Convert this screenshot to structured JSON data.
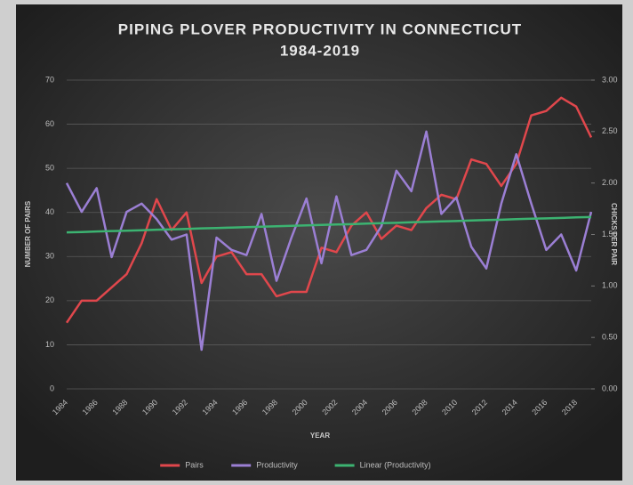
{
  "chart_data": {
    "type": "line",
    "title": "PIPING PLOVER PRODUCTIVITY IN CONNECTICUT",
    "subtitle": "1984-2019",
    "x_label": "YEAR",
    "y_label": "NUMBER OF PAIRS",
    "y2_label": "CHICKS PER PAIR",
    "categories": [
      "1984",
      null,
      "1986",
      null,
      "1988",
      null,
      "1990",
      null,
      "1992",
      null,
      "1994",
      null,
      "1996",
      null,
      "1998",
      null,
      "2000",
      null,
      "2002",
      null,
      "2004",
      null,
      "2006",
      null,
      "2008",
      null,
      "2010",
      null,
      "2012",
      null,
      "2014",
      null,
      "2016",
      null,
      "2018",
      null
    ],
    "ylim": [
      0,
      70
    ],
    "yticks": [
      0,
      10,
      20,
      30,
      40,
      50,
      60,
      70
    ],
    "y2lim": [
      0,
      3
    ],
    "y2ticks": [
      {
        "value": 0,
        "label": "0.00"
      },
      {
        "value": 0.5,
        "label": "0.50"
      },
      {
        "value": 1,
        "label": "1.00"
      },
      {
        "value": 1.5,
        "label": "1.50"
      },
      {
        "value": 2,
        "label": "2.00"
      },
      {
        "value": 2.5,
        "label": "2.50"
      },
      {
        "value": 3,
        "label": "3.00"
      }
    ],
    "grid": true,
    "legend": "bottom",
    "series": [
      {
        "name": "Pairs",
        "color": "#e0474c",
        "axis": "y",
        "values": [
          15,
          20,
          20,
          23,
          26,
          33,
          43,
          36,
          40,
          24,
          30,
          31,
          26,
          26,
          21,
          22,
          22,
          32,
          31,
          37,
          40,
          34,
          37,
          36,
          41,
          44,
          43,
          52,
          51,
          46,
          51,
          62,
          63,
          66,
          64,
          57
        ]
      },
      {
        "name": "Productivity",
        "color": "#9b7fd4",
        "axis": "y2",
        "values": [
          2.0,
          1.72,
          1.95,
          1.28,
          1.72,
          1.8,
          1.65,
          1.45,
          1.5,
          0.38,
          1.47,
          1.35,
          1.3,
          1.7,
          1.05,
          1.47,
          1.85,
          1.22,
          1.87,
          1.3,
          1.35,
          1.58,
          2.12,
          1.92,
          2.5,
          1.7,
          1.86,
          1.38,
          1.17,
          1.8,
          2.28,
          1.8,
          1.35,
          1.5,
          1.15,
          1.72
        ]
      },
      {
        "name": "Linear (Productivity)",
        "color": "#3cb371",
        "axis": "y2",
        "values": [
          1.52,
          1.524,
          1.529,
          1.533,
          1.537,
          1.541,
          1.546,
          1.55,
          1.554,
          1.559,
          1.563,
          1.567,
          1.571,
          1.576,
          1.58,
          1.584,
          1.589,
          1.593,
          1.597,
          1.601,
          1.606,
          1.61,
          1.614,
          1.619,
          1.623,
          1.627,
          1.631,
          1.636,
          1.64,
          1.644,
          1.649,
          1.653,
          1.657,
          1.661,
          1.666,
          1.67
        ]
      }
    ]
  }
}
